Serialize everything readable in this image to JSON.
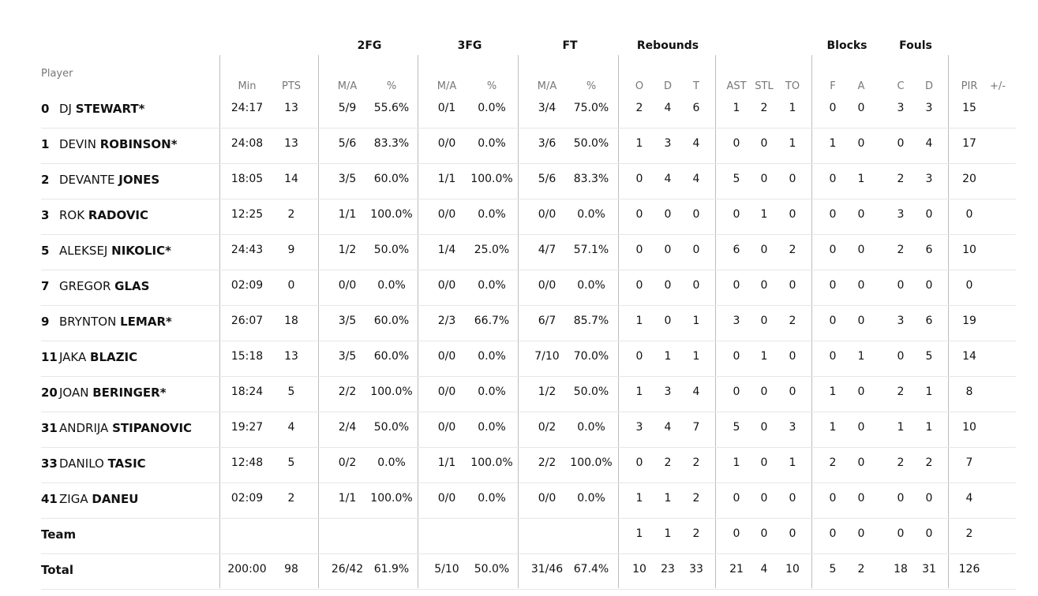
{
  "group_headers": {
    "fg2": "2FG",
    "fg3": "3FG",
    "ft": "FT",
    "rebounds": "Rebounds",
    "blocks": "Blocks",
    "fouls": "Fouls"
  },
  "column_headers": {
    "player": "Player",
    "min": "Min",
    "pts": "PTS",
    "fg2_ma": "M/A",
    "fg2_pct": "%",
    "fg3_ma": "M/A",
    "fg3_pct": "%",
    "ft_ma": "M/A",
    "ft_pct": "%",
    "reb_o": "O",
    "reb_d": "D",
    "reb_t": "T",
    "ast": "AST",
    "stl": "STL",
    "to": "TO",
    "blk_f": "F",
    "blk_a": "A",
    "foul_c": "C",
    "foul_d": "D",
    "pir": "PIR",
    "pm": "+/-"
  },
  "players": [
    {
      "num": "0",
      "first": "DJ",
      "last": "STEWART*",
      "min": "24:17",
      "pts": "13",
      "fg2_ma": "5/9",
      "fg2_pct": "55.6%",
      "fg3_ma": "0/1",
      "fg3_pct": "0.0%",
      "ft_ma": "3/4",
      "ft_pct": "75.0%",
      "reb_o": "2",
      "reb_d": "4",
      "reb_t": "6",
      "ast": "1",
      "stl": "2",
      "to": "1",
      "blk_f": "0",
      "blk_a": "0",
      "foul_c": "3",
      "foul_d": "3",
      "pir": "15"
    },
    {
      "num": "1",
      "first": "DEVIN",
      "last": "ROBINSON*",
      "min": "24:08",
      "pts": "13",
      "fg2_ma": "5/6",
      "fg2_pct": "83.3%",
      "fg3_ma": "0/0",
      "fg3_pct": "0.0%",
      "ft_ma": "3/6",
      "ft_pct": "50.0%",
      "reb_o": "1",
      "reb_d": "3",
      "reb_t": "4",
      "ast": "0",
      "stl": "0",
      "to": "1",
      "blk_f": "1",
      "blk_a": "0",
      "foul_c": "0",
      "foul_d": "4",
      "pir": "17"
    },
    {
      "num": "2",
      "first": "DEVANTE",
      "last": "JONES",
      "min": "18:05",
      "pts": "14",
      "fg2_ma": "3/5",
      "fg2_pct": "60.0%",
      "fg3_ma": "1/1",
      "fg3_pct": "100.0%",
      "ft_ma": "5/6",
      "ft_pct": "83.3%",
      "reb_o": "0",
      "reb_d": "4",
      "reb_t": "4",
      "ast": "5",
      "stl": "0",
      "to": "0",
      "blk_f": "0",
      "blk_a": "1",
      "foul_c": "2",
      "foul_d": "3",
      "pir": "20"
    },
    {
      "num": "3",
      "first": "ROK",
      "last": "RADOVIC",
      "min": "12:25",
      "pts": "2",
      "fg2_ma": "1/1",
      "fg2_pct": "100.0%",
      "fg3_ma": "0/0",
      "fg3_pct": "0.0%",
      "ft_ma": "0/0",
      "ft_pct": "0.0%",
      "reb_o": "0",
      "reb_d": "0",
      "reb_t": "0",
      "ast": "0",
      "stl": "1",
      "to": "0",
      "blk_f": "0",
      "blk_a": "0",
      "foul_c": "3",
      "foul_d": "0",
      "pir": "0"
    },
    {
      "num": "5",
      "first": "ALEKSEJ",
      "last": "NIKOLIC*",
      "min": "24:43",
      "pts": "9",
      "fg2_ma": "1/2",
      "fg2_pct": "50.0%",
      "fg3_ma": "1/4",
      "fg3_pct": "25.0%",
      "ft_ma": "4/7",
      "ft_pct": "57.1%",
      "reb_o": "0",
      "reb_d": "0",
      "reb_t": "0",
      "ast": "6",
      "stl": "0",
      "to": "2",
      "blk_f": "0",
      "blk_a": "0",
      "foul_c": "2",
      "foul_d": "6",
      "pir": "10"
    },
    {
      "num": "7",
      "first": "GREGOR",
      "last": "GLAS",
      "min": "02:09",
      "pts": "0",
      "fg2_ma": "0/0",
      "fg2_pct": "0.0%",
      "fg3_ma": "0/0",
      "fg3_pct": "0.0%",
      "ft_ma": "0/0",
      "ft_pct": "0.0%",
      "reb_o": "0",
      "reb_d": "0",
      "reb_t": "0",
      "ast": "0",
      "stl": "0",
      "to": "0",
      "blk_f": "0",
      "blk_a": "0",
      "foul_c": "0",
      "foul_d": "0",
      "pir": "0"
    },
    {
      "num": "9",
      "first": "BRYNTON",
      "last": "LEMAR*",
      "min": "26:07",
      "pts": "18",
      "fg2_ma": "3/5",
      "fg2_pct": "60.0%",
      "fg3_ma": "2/3",
      "fg3_pct": "66.7%",
      "ft_ma": "6/7",
      "ft_pct": "85.7%",
      "reb_o": "1",
      "reb_d": "0",
      "reb_t": "1",
      "ast": "3",
      "stl": "0",
      "to": "2",
      "blk_f": "0",
      "blk_a": "0",
      "foul_c": "3",
      "foul_d": "6",
      "pir": "19"
    },
    {
      "num": "11",
      "first": "JAKA",
      "last": "BLAZIC",
      "min": "15:18",
      "pts": "13",
      "fg2_ma": "3/5",
      "fg2_pct": "60.0%",
      "fg3_ma": "0/0",
      "fg3_pct": "0.0%",
      "ft_ma": "7/10",
      "ft_pct": "70.0%",
      "reb_o": "0",
      "reb_d": "1",
      "reb_t": "1",
      "ast": "0",
      "stl": "1",
      "to": "0",
      "blk_f": "0",
      "blk_a": "1",
      "foul_c": "0",
      "foul_d": "5",
      "pir": "14"
    },
    {
      "num": "20",
      "first": "JOAN",
      "last": "BERINGER*",
      "min": "18:24",
      "pts": "5",
      "fg2_ma": "2/2",
      "fg2_pct": "100.0%",
      "fg3_ma": "0/0",
      "fg3_pct": "0.0%",
      "ft_ma": "1/2",
      "ft_pct": "50.0%",
      "reb_o": "1",
      "reb_d": "3",
      "reb_t": "4",
      "ast": "0",
      "stl": "0",
      "to": "0",
      "blk_f": "1",
      "blk_a": "0",
      "foul_c": "2",
      "foul_d": "1",
      "pir": "8"
    },
    {
      "num": "31",
      "first": "ANDRIJA",
      "last": "STIPANOVIC",
      "min": "19:27",
      "pts": "4",
      "fg2_ma": "2/4",
      "fg2_pct": "50.0%",
      "fg3_ma": "0/0",
      "fg3_pct": "0.0%",
      "ft_ma": "0/2",
      "ft_pct": "0.0%",
      "reb_o": "3",
      "reb_d": "4",
      "reb_t": "7",
      "ast": "5",
      "stl": "0",
      "to": "3",
      "blk_f": "1",
      "blk_a": "0",
      "foul_c": "1",
      "foul_d": "1",
      "pir": "10"
    },
    {
      "num": "33",
      "first": "DANILO",
      "last": "TASIC",
      "min": "12:48",
      "pts": "5",
      "fg2_ma": "0/2",
      "fg2_pct": "0.0%",
      "fg3_ma": "1/1",
      "fg3_pct": "100.0%",
      "ft_ma": "2/2",
      "ft_pct": "100.0%",
      "reb_o": "0",
      "reb_d": "2",
      "reb_t": "2",
      "ast": "1",
      "stl": "0",
      "to": "1",
      "blk_f": "2",
      "blk_a": "0",
      "foul_c": "2",
      "foul_d": "2",
      "pir": "7"
    },
    {
      "num": "41",
      "first": "ZIGA",
      "last": "DANEU",
      "min": "02:09",
      "pts": "2",
      "fg2_ma": "1/1",
      "fg2_pct": "100.0%",
      "fg3_ma": "0/0",
      "fg3_pct": "0.0%",
      "ft_ma": "0/0",
      "ft_pct": "0.0%",
      "reb_o": "1",
      "reb_d": "1",
      "reb_t": "2",
      "ast": "0",
      "stl": "0",
      "to": "0",
      "blk_f": "0",
      "blk_a": "0",
      "foul_c": "0",
      "foul_d": "0",
      "pir": "4"
    }
  ],
  "team": {
    "label": "Team",
    "reb_o": "1",
    "reb_d": "1",
    "reb_t": "2",
    "ast": "0",
    "stl": "0",
    "to": "0",
    "blk_f": "0",
    "blk_a": "0",
    "foul_c": "0",
    "foul_d": "0",
    "pir": "2"
  },
  "total": {
    "label": "Total",
    "min": "200:00",
    "pts": "98",
    "fg2_ma": "26/42",
    "fg2_pct": "61.9%",
    "fg3_ma": "5/10",
    "fg3_pct": "50.0%",
    "ft_ma": "31/46",
    "ft_pct": "67.4%",
    "reb_o": "10",
    "reb_d": "23",
    "reb_t": "33",
    "ast": "21",
    "stl": "4",
    "to": "10",
    "blk_f": "5",
    "blk_a": "2",
    "foul_c": "18",
    "foul_d": "31",
    "pir": "126"
  }
}
